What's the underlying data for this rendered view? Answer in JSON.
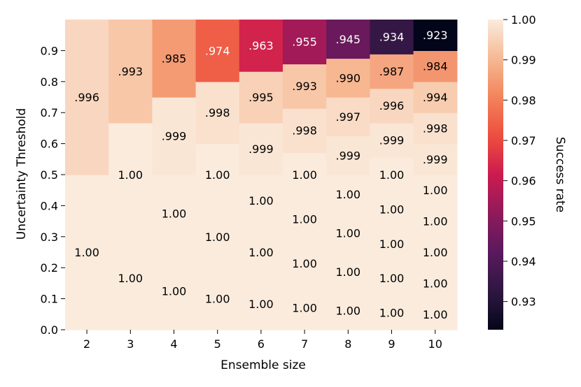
{
  "chart_data": {
    "type": "heatmap",
    "xlabel": "Ensemble size",
    "ylabel": "Uncertainty Threshold",
    "x_ticks": [
      "2",
      "3",
      "4",
      "5",
      "6",
      "7",
      "8",
      "9",
      "10"
    ],
    "y_ticks": [
      "0.0",
      "0.1",
      "0.2",
      "0.3",
      "0.4",
      "0.5",
      "0.6",
      "0.7",
      "0.8",
      "0.9"
    ],
    "ylim": [
      0.0,
      1.0
    ],
    "colorbar": {
      "label": "Success rate",
      "range": [
        0.923,
        1.0
      ],
      "ticks": [
        "0.93",
        "0.94",
        "0.95",
        "0.96",
        "0.97",
        "0.98",
        "0.99",
        "1.00"
      ],
      "colormap": "rocket"
    },
    "columns": [
      {
        "x": "2",
        "segments": [
          {
            "y0": 0.0,
            "y1": 0.5,
            "value": 1.0,
            "label": "1.00"
          },
          {
            "y0": 0.5,
            "y1": 1.0,
            "value": 0.996,
            "label": ".996"
          }
        ]
      },
      {
        "x": "3",
        "segments": [
          {
            "y0": 0.0,
            "y1": 0.333,
            "value": 1.0,
            "label": "1.00"
          },
          {
            "y0": 0.333,
            "y1": 0.667,
            "value": 1.0,
            "label": "1.00"
          },
          {
            "y0": 0.667,
            "y1": 1.0,
            "value": 0.993,
            "label": ".993"
          }
        ]
      },
      {
        "x": "4",
        "segments": [
          {
            "y0": 0.0,
            "y1": 0.25,
            "value": 1.0,
            "label": "1.00"
          },
          {
            "y0": 0.25,
            "y1": 0.5,
            "value": 1.0,
            "label": "1.00"
          },
          {
            "y0": 0.5,
            "y1": 0.75,
            "value": 0.999,
            "label": ".999"
          },
          {
            "y0": 0.75,
            "y1": 1.0,
            "value": 0.985,
            "label": ".985"
          }
        ]
      },
      {
        "x": "5",
        "segments": [
          {
            "y0": 0.0,
            "y1": 0.2,
            "value": 1.0,
            "label": "1.00"
          },
          {
            "y0": 0.2,
            "y1": 0.4,
            "value": 1.0,
            "label": "1.00"
          },
          {
            "y0": 0.4,
            "y1": 0.6,
            "value": 1.0,
            "label": "1.00"
          },
          {
            "y0": 0.6,
            "y1": 0.8,
            "value": 0.998,
            "label": ".998"
          },
          {
            "y0": 0.8,
            "y1": 1.0,
            "value": 0.974,
            "label": ".974"
          }
        ]
      },
      {
        "x": "6",
        "segments": [
          {
            "y0": 0.0,
            "y1": 0.167,
            "value": 1.0,
            "label": "1.00"
          },
          {
            "y0": 0.167,
            "y1": 0.333,
            "value": 1.0,
            "label": "1.00"
          },
          {
            "y0": 0.333,
            "y1": 0.5,
            "value": 1.0,
            "label": "1.00"
          },
          {
            "y0": 0.5,
            "y1": 0.667,
            "value": 0.999,
            "label": ".999"
          },
          {
            "y0": 0.667,
            "y1": 0.833,
            "value": 0.995,
            "label": ".995"
          },
          {
            "y0": 0.833,
            "y1": 1.0,
            "value": 0.963,
            "label": ".963"
          }
        ]
      },
      {
        "x": "7",
        "segments": [
          {
            "y0": 0.0,
            "y1": 0.143,
            "value": 1.0,
            "label": "1.00"
          },
          {
            "y0": 0.143,
            "y1": 0.286,
            "value": 1.0,
            "label": "1.00"
          },
          {
            "y0": 0.286,
            "y1": 0.429,
            "value": 1.0,
            "label": "1.00"
          },
          {
            "y0": 0.429,
            "y1": 0.571,
            "value": 1.0,
            "label": "1.00"
          },
          {
            "y0": 0.571,
            "y1": 0.714,
            "value": 0.998,
            "label": ".998"
          },
          {
            "y0": 0.714,
            "y1": 0.857,
            "value": 0.993,
            "label": ".993"
          },
          {
            "y0": 0.857,
            "y1": 1.0,
            "value": 0.955,
            "label": ".955"
          }
        ]
      },
      {
        "x": "8",
        "segments": [
          {
            "y0": 0.0,
            "y1": 0.125,
            "value": 1.0,
            "label": "1.00"
          },
          {
            "y0": 0.125,
            "y1": 0.25,
            "value": 1.0,
            "label": "1.00"
          },
          {
            "y0": 0.25,
            "y1": 0.375,
            "value": 1.0,
            "label": "1.00"
          },
          {
            "y0": 0.375,
            "y1": 0.5,
            "value": 1.0,
            "label": "1.00"
          },
          {
            "y0": 0.5,
            "y1": 0.625,
            "value": 0.999,
            "label": ".999"
          },
          {
            "y0": 0.625,
            "y1": 0.75,
            "value": 0.997,
            "label": ".997"
          },
          {
            "y0": 0.75,
            "y1": 0.875,
            "value": 0.99,
            "label": ".990"
          },
          {
            "y0": 0.875,
            "y1": 1.0,
            "value": 0.945,
            "label": ".945"
          }
        ]
      },
      {
        "x": "9",
        "segments": [
          {
            "y0": 0.0,
            "y1": 0.111,
            "value": 1.0,
            "label": "1.00"
          },
          {
            "y0": 0.111,
            "y1": 0.222,
            "value": 1.0,
            "label": "1.00"
          },
          {
            "y0": 0.222,
            "y1": 0.333,
            "value": 1.0,
            "label": "1.00"
          },
          {
            "y0": 0.333,
            "y1": 0.444,
            "value": 1.0,
            "label": "1.00"
          },
          {
            "y0": 0.444,
            "y1": 0.556,
            "value": 1.0,
            "label": "1.00"
          },
          {
            "y0": 0.556,
            "y1": 0.667,
            "value": 0.999,
            "label": ".999"
          },
          {
            "y0": 0.667,
            "y1": 0.778,
            "value": 0.996,
            "label": ".996"
          },
          {
            "y0": 0.778,
            "y1": 0.889,
            "value": 0.987,
            "label": ".987"
          },
          {
            "y0": 0.889,
            "y1": 1.0,
            "value": 0.934,
            "label": ".934"
          }
        ]
      },
      {
        "x": "10",
        "segments": [
          {
            "y0": 0.0,
            "y1": 0.1,
            "value": 1.0,
            "label": "1.00"
          },
          {
            "y0": 0.1,
            "y1": 0.2,
            "value": 1.0,
            "label": "1.00"
          },
          {
            "y0": 0.2,
            "y1": 0.3,
            "value": 1.0,
            "label": "1.00"
          },
          {
            "y0": 0.3,
            "y1": 0.4,
            "value": 1.0,
            "label": "1.00"
          },
          {
            "y0": 0.4,
            "y1": 0.5,
            "value": 1.0,
            "label": "1.00"
          },
          {
            "y0": 0.5,
            "y1": 0.6,
            "value": 0.999,
            "label": ".999"
          },
          {
            "y0": 0.6,
            "y1": 0.7,
            "value": 0.998,
            "label": ".998"
          },
          {
            "y0": 0.7,
            "y1": 0.8,
            "value": 0.994,
            "label": ".994"
          },
          {
            "y0": 0.8,
            "y1": 0.9,
            "value": 0.984,
            "label": ".984"
          },
          {
            "y0": 0.9,
            "y1": 1.0,
            "value": 0.923,
            "label": ".923"
          }
        ]
      }
    ]
  }
}
